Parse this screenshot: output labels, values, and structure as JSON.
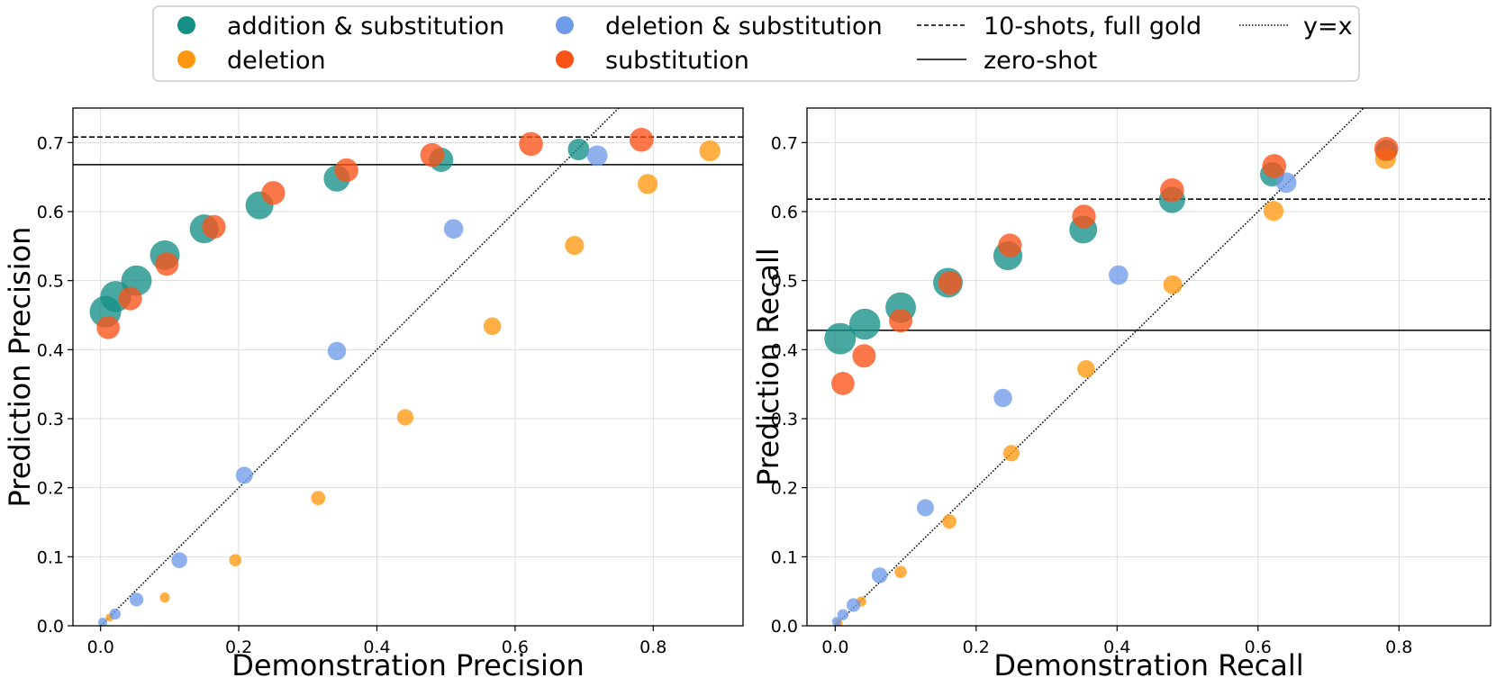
{
  "colors": {
    "addition_substitution": "#168f86",
    "deletion": "#ff980f",
    "deletion_substitution": "#6f9be8",
    "substitution": "#fb5218",
    "line": "#000000",
    "grid": "#dddddd"
  },
  "legend": {
    "entries": [
      {
        "label": "addition & substitution",
        "kind": "marker",
        "series": "addition_substitution"
      },
      {
        "label": "deletion",
        "kind": "marker",
        "series": "deletion"
      },
      {
        "label": "deletion & substitution",
        "kind": "marker",
        "series": "deletion_substitution"
      },
      {
        "label": "substitution",
        "kind": "marker",
        "series": "substitution"
      },
      {
        "label": "10-shots, full gold",
        "kind": "dashed"
      },
      {
        "label": "zero-shot",
        "kind": "solid"
      },
      {
        "label": "y=x",
        "kind": "dotted"
      }
    ]
  },
  "chart_data": [
    {
      "type": "scatter",
      "title": "",
      "xlabel": "Demonstration Precision",
      "ylabel": "Prediction Precision",
      "xlim": [
        -0.04,
        0.93
      ],
      "ylim": [
        0.0,
        0.75
      ],
      "xticks": [
        "0.0",
        "0.2",
        "0.4",
        "0.6",
        "0.8"
      ],
      "yticks": [
        "0.0",
        "0.1",
        "0.2",
        "0.3",
        "0.4",
        "0.5",
        "0.6",
        "0.7"
      ],
      "grid": true,
      "hlines": [
        {
          "name": "10-shots, full gold",
          "style": "dashed",
          "y": 0.708
        },
        {
          "name": "zero-shot",
          "style": "solid",
          "y": 0.668
        }
      ],
      "diagonal": "y=x",
      "series": [
        {
          "name": "addition & substitution",
          "key": "addition_substitution",
          "x": [
            0.007,
            0.022,
            0.052,
            0.093,
            0.15,
            0.23,
            0.342,
            0.493,
            0.692
          ],
          "y": [
            0.455,
            0.477,
            0.5,
            0.537,
            0.575,
            0.609,
            0.648,
            0.675,
            0.69
          ],
          "sizes": [
            1.0,
            0.98,
            0.96,
            0.93,
            0.9,
            0.86,
            0.8,
            0.72,
            0.62
          ]
        },
        {
          "name": "deletion",
          "key": "deletion",
          "x": [
            0.013,
            0.093,
            0.195,
            0.315,
            0.441,
            0.567,
            0.686,
            0.792,
            0.882
          ],
          "y": [
            0.012,
            0.041,
            0.095,
            0.185,
            0.302,
            0.434,
            0.551,
            0.64,
            0.688
          ],
          "sizes": [
            0.1,
            0.18,
            0.26,
            0.34,
            0.42,
            0.47,
            0.52,
            0.56,
            0.6
          ]
        },
        {
          "name": "deletion & substitution",
          "key": "deletion_substitution",
          "x": [
            0.003,
            0.021,
            0.052,
            0.114,
            0.208,
            0.342,
            0.511,
            0.719
          ],
          "y": [
            0.005,
            0.017,
            0.038,
            0.095,
            0.218,
            0.398,
            0.575,
            0.681
          ],
          "sizes": [
            0.15,
            0.22,
            0.32,
            0.4,
            0.45,
            0.5,
            0.54,
            0.58
          ]
        },
        {
          "name": "substitution",
          "key": "substitution",
          "x": [
            0.011,
            0.043,
            0.096,
            0.164,
            0.25,
            0.356,
            0.48,
            0.623,
            0.783
          ],
          "y": [
            0.432,
            0.474,
            0.524,
            0.578,
            0.627,
            0.66,
            0.682,
            0.698,
            0.704
          ],
          "sizes": [
            0.68,
            0.69,
            0.69,
            0.7,
            0.7,
            0.7,
            0.71,
            0.71,
            0.71
          ]
        }
      ]
    },
    {
      "type": "scatter",
      "title": "",
      "xlabel": "Demonstration Recall",
      "ylabel": "Prediction Recall",
      "xlim": [
        -0.04,
        0.93
      ],
      "ylim": [
        0.0,
        0.75
      ],
      "xticks": [
        "0.0",
        "0.2",
        "0.4",
        "0.6",
        "0.8"
      ],
      "yticks": [
        "0.0",
        "0.1",
        "0.2",
        "0.3",
        "0.4",
        "0.5",
        "0.6",
        "0.7"
      ],
      "grid": true,
      "hlines": [
        {
          "name": "10-shots, full gold",
          "style": "dashed",
          "y": 0.618
        },
        {
          "name": "zero-shot",
          "style": "solid",
          "y": 0.428
        }
      ],
      "diagonal": "y=x",
      "series": [
        {
          "name": "addition & substitution",
          "key": "addition_substitution",
          "x": [
            0.007,
            0.042,
            0.093,
            0.16,
            0.245,
            0.352,
            0.478,
            0.62,
            0.782
          ],
          "y": [
            0.416,
            0.437,
            0.461,
            0.497,
            0.536,
            0.574,
            0.617,
            0.654,
            0.688
          ],
          "sizes": [
            1.0,
            0.98,
            0.96,
            0.93,
            0.9,
            0.86,
            0.8,
            0.72,
            0.62
          ]
        },
        {
          "name": "deletion",
          "key": "deletion",
          "x": [
            0.005,
            0.037,
            0.093,
            0.162,
            0.25,
            0.356,
            0.479,
            0.622,
            0.781
          ],
          "y": [
            0.004,
            0.035,
            0.078,
            0.151,
            0.25,
            0.372,
            0.494,
            0.601,
            0.677
          ],
          "sizes": [
            0.1,
            0.18,
            0.26,
            0.34,
            0.42,
            0.47,
            0.52,
            0.56,
            0.6
          ]
        },
        {
          "name": "deletion & substitution",
          "key": "deletion_substitution",
          "x": [
            0.002,
            0.011,
            0.026,
            0.063,
            0.128,
            0.238,
            0.402,
            0.64
          ],
          "y": [
            0.006,
            0.016,
            0.03,
            0.073,
            0.171,
            0.33,
            0.508,
            0.642
          ],
          "sizes": [
            0.15,
            0.22,
            0.32,
            0.4,
            0.45,
            0.5,
            0.54,
            0.58
          ]
        },
        {
          "name": "substitution",
          "key": "substitution",
          "x": [
            0.011,
            0.041,
            0.093,
            0.163,
            0.248,
            0.353,
            0.478,
            0.623,
            0.782
          ],
          "y": [
            0.351,
            0.391,
            0.442,
            0.497,
            0.551,
            0.593,
            0.631,
            0.666,
            0.691
          ],
          "sizes": [
            0.68,
            0.69,
            0.69,
            0.7,
            0.7,
            0.7,
            0.71,
            0.71,
            0.71
          ]
        }
      ]
    }
  ]
}
